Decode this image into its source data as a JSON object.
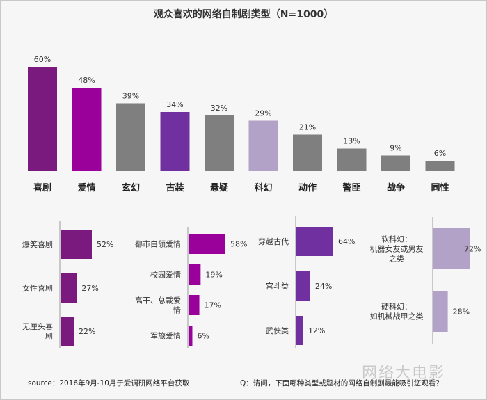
{
  "chart_data": [
    {
      "type": "bar",
      "title": "观众喜欢的网络自制剧类型（N=1000）",
      "categories": [
        "喜剧",
        "爱情",
        "玄幻",
        "古装",
        "悬疑",
        "科幻",
        "动作",
        "警匪",
        "战争",
        "同性"
      ],
      "values": [
        60,
        48,
        39,
        34,
        32,
        29,
        21,
        13,
        9,
        6
      ],
      "value_labels": [
        "60%",
        "48%",
        "39%",
        "34%",
        "32%",
        "29%",
        "21%",
        "13%",
        "9%",
        "6%"
      ],
      "colors": [
        "#7a1a7e",
        "#9a009a",
        "#7f7f7f",
        "#7030a0",
        "#7f7f7f",
        "#b3a2c7",
        "#7f7f7f",
        "#7f7f7f",
        "#7f7f7f",
        "#7f7f7f"
      ],
      "xlabel": "",
      "ylabel": "",
      "ylim": [
        0,
        60
      ],
      "grid": false
    },
    {
      "type": "bar",
      "orientation": "horizontal",
      "group": "喜剧",
      "categories": [
        "爆笑喜剧",
        "女性喜剧",
        "无厘头喜剧"
      ],
      "values": [
        52,
        27,
        22
      ],
      "value_labels": [
        "52%",
        "27%",
        "22%"
      ],
      "color": "#7a1a7e"
    },
    {
      "type": "bar",
      "orientation": "horizontal",
      "group": "爱情",
      "categories": [
        "都市白领爱情",
        "校园爱情",
        "高干、总裁爱情",
        "军旅爱情"
      ],
      "values": [
        58,
        19,
        17,
        6
      ],
      "value_labels": [
        "58%",
        "19%",
        "17%",
        "6%"
      ],
      "color": "#9a009a"
    },
    {
      "type": "bar",
      "orientation": "horizontal",
      "group": "古装",
      "categories": [
        "穿越古代",
        "宫斗类",
        "武侠类"
      ],
      "values": [
        64,
        24,
        12
      ],
      "value_labels": [
        "64%",
        "24%",
        "12%"
      ],
      "color": "#7030a0"
    },
    {
      "type": "bar",
      "orientation": "horizontal",
      "group": "科幻",
      "categories": [
        "软科幻：机器女友或男友之类",
        "硬科幻：如机械战甲之类"
      ],
      "label_lines": [
        [
          "软科幻：",
          "机器女友或男友",
          "之类"
        ],
        [
          "硬科幻：",
          "如机械战甲之类"
        ]
      ],
      "values": [
        72,
        28
      ],
      "value_labels": [
        "72%",
        "28%"
      ],
      "color": "#b3a2c7"
    }
  ],
  "footer": {
    "source": "source：2016年9月-10月于爱调研网络平台获取",
    "question": "Q：请问，下面哪种类型或题材的网络自制剧最能吸引您观看？",
    "watermark": "网络大电影"
  }
}
